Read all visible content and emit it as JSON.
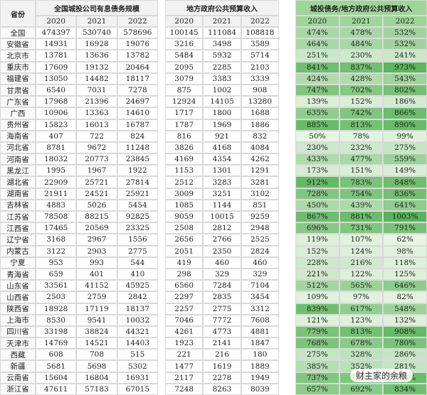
{
  "table": {
    "header": {
      "province": "省份",
      "groups": [
        {
          "title": "全国城投公司有息债务规模",
          "years": [
            "2020",
            "2021",
            "2022"
          ]
        },
        {
          "title": "地方政府公共预算收入",
          "years": [
            "2020",
            "2021",
            "2022"
          ]
        },
        {
          "title": "城投债务/地方政府公共预算收入",
          "years": [
            "2020",
            "2021",
            "2022"
          ]
        }
      ]
    },
    "rows": [
      [
        "全国",
        "474397",
        "530740",
        "578696",
        "100145",
        "111084",
        "108818",
        "474%",
        "478%",
        "532%"
      ],
      [
        "安徽省",
        "14931",
        "16928",
        "19076",
        "3216",
        "3498",
        "3589",
        "464%",
        "484%",
        "532%"
      ],
      [
        "北京市",
        "13781",
        "13636",
        "13782",
        "5484",
        "5932",
        "5714",
        "251%",
        "230%",
        "241%"
      ],
      [
        "重庆市",
        "17609",
        "19132",
        "20464",
        "2095",
        "2285",
        "2103",
        "841%",
        "837%",
        "973%"
      ],
      [
        "福建省",
        "13050",
        "14482",
        "18117",
        "3079",
        "3383",
        "3339",
        "424%",
        "428%",
        "543%"
      ],
      [
        "甘肃省",
        "6540",
        "7031",
        "7278",
        "875",
        "1002",
        "908",
        "747%",
        "702%",
        "802%"
      ],
      [
        "广东省",
        "17968",
        "21396",
        "24697",
        "12924",
        "14105",
        "13280",
        "139%",
        "152%",
        "186%"
      ],
      [
        "广西",
        "10906",
        "13363",
        "14610",
        "1717",
        "1800",
        "1688",
        "635%",
        "742%",
        "866%"
      ],
      [
        "贵州省",
        "15823",
        "16013",
        "16787",
        "1787",
        "1969",
        "1886",
        "885%",
        "813%",
        "890%"
      ],
      [
        "海南省",
        "407",
        "722",
        "824",
        "816",
        "921",
        "832",
        "50%",
        "78%",
        "99%"
      ],
      [
        "河北省",
        "8781",
        "9672",
        "11248",
        "3826",
        "4168",
        "4084",
        "230%",
        "232%",
        "275%"
      ],
      [
        "河南省",
        "18032",
        "20773",
        "23845",
        "4169",
        "4354",
        "4262",
        "433%",
        "477%",
        "559%"
      ],
      [
        "黑龙江",
        "1995",
        "1967",
        "1922",
        "1153",
        "1301",
        "1291",
        "173%",
        "151%",
        "149%"
      ],
      [
        "湖北省",
        "22909",
        "25721",
        "27814",
        "2512",
        "3283",
        "3281",
        "912%",
        "783%",
        "848%"
      ],
      [
        "湖南省",
        "21911",
        "24521",
        "25921",
        "3009",
        "3251",
        "3102",
        "728%",
        "754%",
        "836%"
      ],
      [
        "吉林省",
        "4883",
        "5026",
        "5454",
        "1085",
        "1144",
        "851",
        "450%",
        "439%",
        "641%"
      ],
      [
        "江苏省",
        "78508",
        "88215",
        "92825",
        "9059",
        "10015",
        "9259",
        "867%",
        "881%",
        "1003%"
      ],
      [
        "江西省",
        "17465",
        "20569",
        "23325",
        "2508",
        "2812",
        "2948",
        "696%",
        "731%",
        "791%"
      ],
      [
        "辽宁省",
        "3168",
        "2967",
        "1556",
        "2656",
        "2766",
        "2525",
        "119%",
        "107%",
        "62%"
      ],
      [
        "内蒙古",
        "3122",
        "2903",
        "2775",
        "2051",
        "2350",
        "2824",
        "152%",
        "124%",
        "98%"
      ],
      [
        "宁夏",
        "953",
        "993",
        "544",
        "419",
        "460",
        "460",
        "228%",
        "216%",
        "118%"
      ],
      [
        "青海省",
        "659",
        "401",
        "410",
        "298",
        "329",
        "329",
        "221%",
        "122%",
        "125%"
      ],
      [
        "山东省",
        "33561",
        "41152",
        "45925",
        "6560",
        "7284",
        "7104",
        "512%",
        "565%",
        "646%"
      ],
      [
        "山西省",
        "2503",
        "2759",
        "2842",
        "2297",
        "2835",
        "3454",
        "109%",
        "97%",
        "82%"
      ],
      [
        "陕西省",
        "18928",
        "17119",
        "18137",
        "2257",
        "2775",
        "3312",
        "839%",
        "617%",
        "548%"
      ],
      [
        "上海市",
        "8530",
        "9541",
        "10032",
        "7046",
        "7772",
        "7608",
        "121%",
        "123%",
        "132%"
      ],
      [
        "四川省",
        "33198",
        "38824",
        "44321",
        "4261",
        "4773",
        "4881",
        "779%",
        "813%",
        "908%"
      ],
      [
        "天津市",
        "14769",
        "14521",
        "14403",
        "1923",
        "2141",
        "1847",
        "768%",
        "678%",
        "780%"
      ],
      [
        "西藏",
        "608",
        "708",
        "515",
        "221",
        "216",
        "180",
        "275%",
        "328%",
        "286%"
      ],
      [
        "新疆",
        "5681",
        "5698",
        "5302",
        "1477",
        "1619",
        "1889",
        "385%",
        "352%",
        "281%"
      ],
      [
        "云南省",
        "15604",
        "16804",
        "16931",
        "2117",
        "2278",
        "1949",
        "737%",
        "738%",
        "869%"
      ],
      [
        "浙江省",
        "47611",
        "57183",
        "67015",
        "7248",
        "8263",
        "8039",
        "657%",
        "692%",
        "834%"
      ]
    ]
  },
  "watermark": "财主家的余粮"
}
